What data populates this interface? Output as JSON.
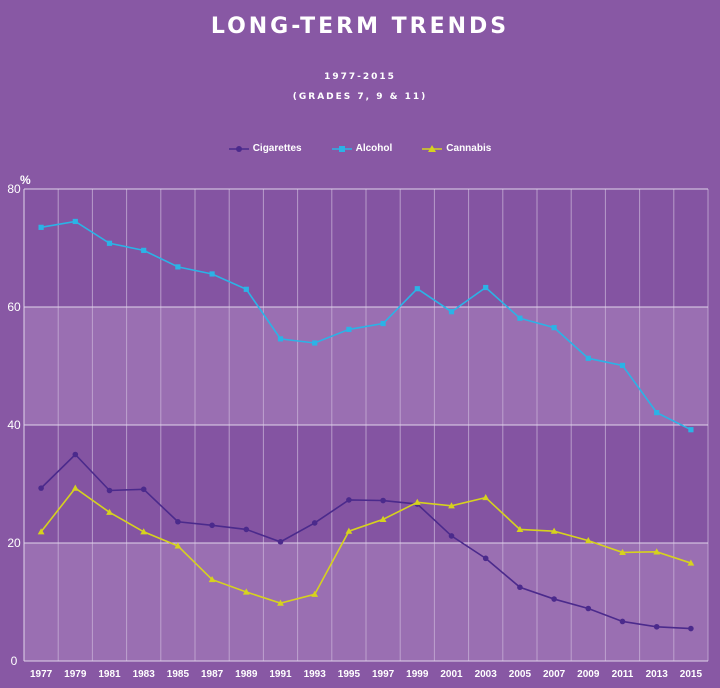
{
  "title": "LONG-TERM TRENDS",
  "subtitle_years": "1977-2015",
  "subtitle_grades": "(GRADES 7, 9 & 11)",
  "colors": {
    "background": "#8858a4",
    "band_light": "#9a6fb2",
    "band_dark": "#8454a2",
    "cigarettes": "#4b2a8c",
    "alcohol": "#2bb3e6",
    "cannabis": "#d6d21e"
  },
  "chart_data": {
    "type": "line",
    "y_unit_label": "%",
    "ylim": [
      0,
      80
    ],
    "y_ticks": [
      "0",
      "20",
      "40",
      "60",
      "80"
    ],
    "x": [
      "1977",
      "1979",
      "1981",
      "1983",
      "1985",
      "1987",
      "1989",
      "1991",
      "1993",
      "1995",
      "1997",
      "1999",
      "2001",
      "2003",
      "2005",
      "2007",
      "2009",
      "2011",
      "2013",
      "2015"
    ],
    "grid": true,
    "legend_position": "top-center",
    "series": [
      {
        "name": "Cigarettes",
        "marker": "circle",
        "values": [
          29.3,
          35.0,
          28.9,
          29.1,
          23.6,
          23.0,
          22.3,
          20.2,
          23.4,
          27.3,
          27.2,
          26.6,
          21.2,
          17.4,
          12.5,
          10.5,
          8.9,
          6.7,
          5.8,
          5.5
        ]
      },
      {
        "name": "Alcohol",
        "marker": "square",
        "values": [
          73.5,
          74.5,
          70.8,
          69.6,
          66.8,
          65.6,
          63.0,
          54.6,
          53.9,
          56.2,
          57.2,
          63.1,
          59.2,
          63.3,
          58.1,
          56.5,
          51.3,
          50.1,
          42.1,
          39.2
        ]
      },
      {
        "name": "Cannabis",
        "marker": "triangle",
        "values": [
          21.9,
          29.3,
          25.2,
          21.9,
          19.5,
          13.8,
          11.7,
          9.8,
          11.3,
          22.0,
          24.0,
          26.9,
          26.3,
          27.7,
          22.3,
          22.0,
          20.4,
          18.4,
          18.5,
          16.6
        ]
      }
    ]
  }
}
